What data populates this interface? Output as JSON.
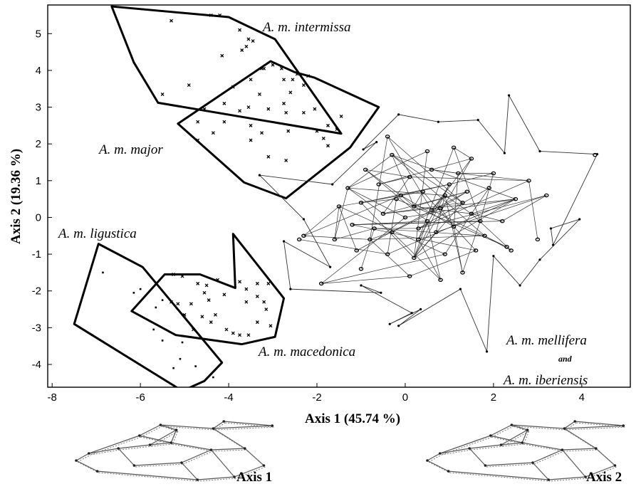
{
  "chart_data": {
    "type": "scatter",
    "xlabel": "Axis 1 (45.74 %)",
    "ylabel": "Axis 2 (19.36 %)",
    "xlim": [
      -8.1,
      5.1
    ],
    "ylim": [
      -4.62,
      5.78
    ],
    "xticks": [
      "-8",
      "-6",
      "-4",
      "-2",
      "0",
      "2",
      "4"
    ],
    "yticks": [
      "5",
      "4",
      "3",
      "2",
      "1",
      "0",
      "-1",
      "-2",
      "-3",
      "-4"
    ],
    "grid": false,
    "series": [
      {
        "name": "A. m. intermissa",
        "label_parts": [
          "A. m. intermissa"
        ],
        "marker": "x",
        "hull": [
          [
            -6.65,
            5.74
          ],
          [
            -4.0,
            5.45
          ],
          [
            -2.95,
            4.85
          ],
          [
            -1.45,
            2.28
          ],
          [
            -5.6,
            3.12
          ],
          [
            -6.15,
            4.22
          ]
        ],
        "points": [
          [
            -5.3,
            5.35
          ],
          [
            -4.4,
            5.5
          ],
          [
            -4.2,
            5.5
          ],
          [
            -3.75,
            5.1
          ],
          [
            -3.55,
            4.85
          ],
          [
            -3.45,
            4.8
          ],
          [
            -3.6,
            4.65
          ],
          [
            -3.7,
            4.55
          ],
          [
            -4.15,
            4.4
          ],
          [
            -3.25,
            4.05
          ],
          [
            -3.0,
            4.15
          ],
          [
            -2.8,
            4.05
          ],
          [
            -5.5,
            3.35
          ],
          [
            -4.9,
            3.6
          ],
          [
            -2.45,
            3.9
          ],
          [
            -2.2,
            3.85
          ],
          [
            -2.55,
            3.75
          ],
          [
            -4.1,
            3.1
          ]
        ]
      },
      {
        "name": "A. m. major",
        "label_parts": [
          "A. m. major"
        ],
        "marker": "x",
        "hull": [
          [
            -3.05,
            4.25
          ],
          [
            -2.5,
            3.95
          ],
          [
            -2.05,
            3.8
          ],
          [
            -0.6,
            3.0
          ],
          [
            -1.25,
            1.9
          ],
          [
            -2.7,
            0.52
          ],
          [
            -3.65,
            0.95
          ],
          [
            -5.15,
            2.55
          ]
        ],
        "points": [
          [
            -3.2,
            4.05
          ],
          [
            -2.75,
            3.75
          ],
          [
            -2.3,
            3.6
          ],
          [
            -3.5,
            3.75
          ],
          [
            -3.9,
            3.55
          ],
          [
            -3.3,
            3.35
          ],
          [
            -2.6,
            3.4
          ],
          [
            -2.75,
            3.1
          ],
          [
            -3.55,
            3.0
          ],
          [
            -3.75,
            2.9
          ],
          [
            -3.1,
            2.95
          ],
          [
            -2.7,
            2.85
          ],
          [
            -2.3,
            2.85
          ],
          [
            -2.05,
            2.95
          ],
          [
            -4.55,
            2.95
          ],
          [
            -4.7,
            2.6
          ],
          [
            -4.1,
            2.6
          ],
          [
            -3.5,
            2.5
          ],
          [
            -3.25,
            2.3
          ],
          [
            -2.65,
            2.35
          ],
          [
            -2.0,
            2.35
          ],
          [
            -1.75,
            2.5
          ],
          [
            -1.85,
            2.15
          ],
          [
            -4.35,
            2.3
          ],
          [
            -3.5,
            2.1
          ],
          [
            -4.7,
            2.1
          ],
          [
            -1.45,
            2.75
          ],
          [
            -1.55,
            2.4
          ],
          [
            -1.75,
            1.95
          ],
          [
            -3.1,
            1.65
          ],
          [
            -2.7,
            1.55
          ]
        ]
      },
      {
        "name": "A. m. ligustica",
        "label_parts": [
          "A. m. ligustica"
        ],
        "marker": "dot",
        "hull": [
          [
            -6.95,
            -0.72
          ],
          [
            -5.95,
            -1.35
          ],
          [
            -4.15,
            -3.95
          ],
          [
            -4.55,
            -4.45
          ],
          [
            -5.05,
            -4.72
          ],
          [
            -7.5,
            -2.9
          ]
        ],
        "points": [
          [
            -6.85,
            -1.5
          ],
          [
            -6.15,
            -2.05
          ],
          [
            -6.0,
            -1.95
          ],
          [
            -5.65,
            -2.45
          ],
          [
            -5.5,
            -2.25
          ],
          [
            -5.7,
            -3.05
          ],
          [
            -5.5,
            -3.35
          ],
          [
            -5.05,
            -3.4
          ],
          [
            -5.1,
            -3.85
          ],
          [
            -5.25,
            -4.1
          ],
          [
            -4.75,
            -4.05
          ],
          [
            -4.35,
            -4.35
          ]
        ]
      },
      {
        "name": "A. m. macedonica",
        "label_parts": [
          "A. m. macedonica"
        ],
        "marker": "x",
        "hull": [
          [
            -3.9,
            -0.45
          ],
          [
            -2.75,
            -2.2
          ],
          [
            -2.95,
            -3.25
          ],
          [
            -3.7,
            -3.45
          ],
          [
            -5.2,
            -3.2
          ],
          [
            -6.2,
            -2.55
          ],
          [
            -5.45,
            -1.55
          ],
          [
            -4.65,
            -1.55
          ],
          [
            -3.85,
            -1.92
          ]
        ],
        "points": [
          [
            -5.25,
            -1.55
          ],
          [
            -5.05,
            -1.6
          ],
          [
            -4.7,
            -1.8
          ],
          [
            -4.5,
            -1.85
          ],
          [
            -4.25,
            -1.7
          ],
          [
            -4.55,
            -2.05
          ],
          [
            -4.1,
            -2.1
          ],
          [
            -5.3,
            -2.3
          ],
          [
            -5.15,
            -2.35
          ],
          [
            -4.85,
            -2.35
          ],
          [
            -4.45,
            -2.25
          ],
          [
            -3.75,
            -1.75
          ],
          [
            -3.6,
            -1.95
          ],
          [
            -3.35,
            -1.8
          ],
          [
            -3.1,
            -1.8
          ],
          [
            -3.6,
            -2.3
          ],
          [
            -3.35,
            -2.15
          ],
          [
            -3.2,
            -2.3
          ],
          [
            -3.15,
            -2.5
          ],
          [
            -3.35,
            -2.85
          ],
          [
            -3.05,
            -2.95
          ],
          [
            -5.0,
            -2.65
          ],
          [
            -4.6,
            -2.7
          ],
          [
            -4.4,
            -2.85
          ],
          [
            -4.05,
            -3.05
          ],
          [
            -3.9,
            -3.15
          ],
          [
            -3.75,
            -3.2
          ],
          [
            -3.55,
            -3.2
          ],
          [
            -4.8,
            -3.05
          ],
          [
            -4.3,
            -2.65
          ]
        ]
      },
      {
        "name": "A. m. mellifera and A. m. iberiensis",
        "label_parts": [
          "A. m. mellifera",
          "and",
          "A. m. iberiensis"
        ],
        "marker": "circle",
        "outline": [
          [
            -3.3,
            1.15
          ],
          [
            -2.3,
            -0.05
          ],
          [
            -1.7,
            -1.35
          ],
          [
            -2.75,
            -0.65
          ],
          [
            -2.6,
            -1.95
          ],
          [
            -0.55,
            -2.05
          ],
          [
            -1.0,
            -1.85
          ],
          [
            0.15,
            -2.6
          ],
          [
            -0.35,
            -2.9
          ],
          [
            0.35,
            -2.5
          ],
          [
            -0.15,
            -2.95
          ],
          [
            1.25,
            -1.95
          ],
          [
            1.85,
            -3.65
          ],
          [
            2.0,
            -1.05
          ],
          [
            2.6,
            -1.85
          ],
          [
            3.05,
            -1.15
          ],
          [
            3.95,
            -0.05
          ],
          [
            3.3,
            -0.3
          ],
          [
            3.35,
            -0.75
          ],
          [
            4.35,
            1.72
          ],
          [
            3.05,
            1.8
          ],
          [
            2.35,
            3.32
          ],
          [
            2.25,
            1.75
          ],
          [
            1.65,
            2.65
          ],
          [
            0.75,
            2.6
          ],
          [
            -0.15,
            2.8
          ],
          [
            -0.95,
            1.85
          ],
          [
            -0.65,
            2.05
          ],
          [
            -1.65,
            0.9
          ],
          [
            -3.3,
            1.15
          ]
        ],
        "points": [
          [
            0.0,
            0.0
          ],
          [
            0.2,
            0.3
          ],
          [
            0.5,
            -0.1
          ],
          [
            0.8,
            0.25
          ],
          [
            1.1,
            -0.25
          ],
          [
            -0.2,
            0.5
          ],
          [
            0.4,
            0.7
          ],
          [
            0.9,
            0.6
          ],
          [
            1.3,
            0.4
          ],
          [
            -0.5,
            0.1
          ],
          [
            -0.3,
            -0.4
          ],
          [
            0.3,
            -0.6
          ],
          [
            0.7,
            -0.4
          ],
          [
            1.0,
            0.9
          ],
          [
            1.5,
            0.1
          ],
          [
            1.8,
            -0.5
          ],
          [
            -0.8,
            -0.6
          ],
          [
            -1.0,
            0.4
          ],
          [
            -0.6,
            0.9
          ],
          [
            0.1,
            1.1
          ],
          [
            0.6,
            1.3
          ],
          [
            1.2,
            1.2
          ],
          [
            1.9,
            0.8
          ],
          [
            2.2,
            -0.1
          ],
          [
            1.6,
            -0.9
          ],
          [
            0.9,
            -1.0
          ],
          [
            0.2,
            -1.1
          ],
          [
            -0.4,
            -1.0
          ],
          [
            -1.2,
            -0.2
          ],
          [
            -1.3,
            0.8
          ],
          [
            -0.9,
            1.3
          ],
          [
            0.5,
            1.8
          ],
          [
            1.5,
            1.6
          ],
          [
            2.5,
            0.5
          ],
          [
            2.4,
            -0.9
          ],
          [
            1.3,
            -1.5
          ],
          [
            0.1,
            -1.6
          ],
          [
            -1.0,
            -1.4
          ],
          [
            -1.6,
            -0.6
          ],
          [
            -1.5,
            0.3
          ],
          [
            -0.3,
            1.7
          ],
          [
            2.8,
            1.0
          ],
          [
            3.2,
            0.6
          ],
          [
            3.0,
            -0.6
          ],
          [
            -2.3,
            -0.5
          ],
          [
            -1.9,
            -1.8
          ],
          [
            4.3,
            1.7
          ],
          [
            2.3,
            -0.8
          ],
          [
            -2.4,
            -0.6
          ],
          [
            1.7,
            -0.1
          ],
          [
            0.6,
            0.2
          ],
          [
            -0.7,
            -0.3
          ],
          [
            1.4,
            0.7
          ],
          [
            0.3,
            -0.3
          ],
          [
            -1.1,
            -0.9
          ],
          [
            2.0,
            1.2
          ],
          [
            0.8,
            -1.7
          ],
          [
            -0.1,
            0.6
          ],
          [
            1.1,
            1.9
          ],
          [
            -0.4,
            2.2
          ]
        ]
      }
    ],
    "wing_insets": [
      {
        "label": "Axis 1"
      },
      {
        "label": "Axis 2"
      }
    ]
  }
}
